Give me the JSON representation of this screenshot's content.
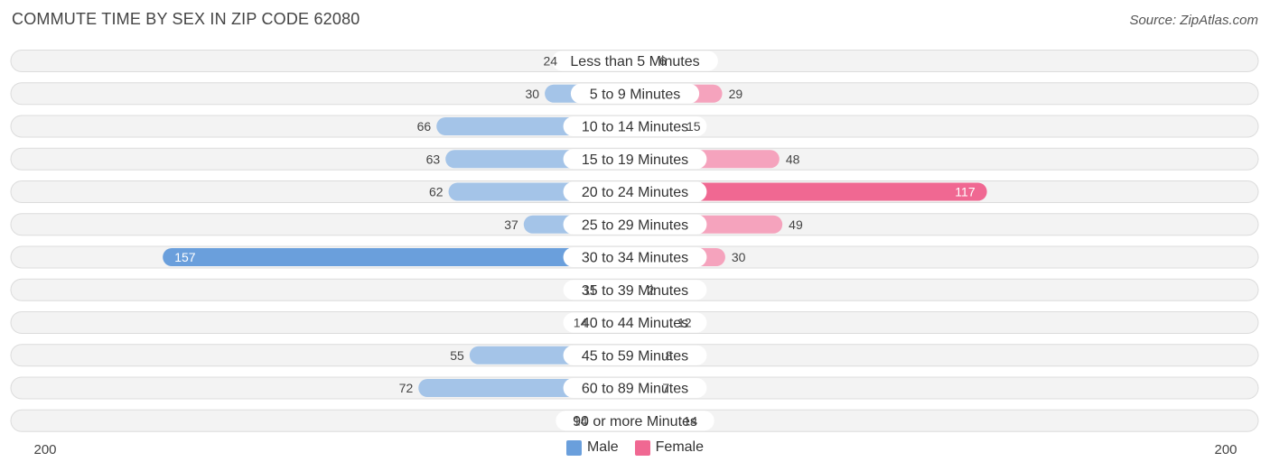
{
  "title": "COMMUTE TIME BY SEX IN ZIP CODE 62080",
  "source": "Source: ZipAtlas.com",
  "colors": {
    "male_light": "#a4c4e8",
    "male_strong": "#6a9fdc",
    "female_light": "#f5a3bd",
    "female_strong": "#f06892"
  },
  "legend": {
    "male": "Male",
    "female": "Female"
  },
  "axis": {
    "left_label": "200",
    "right_label": "200"
  },
  "chart_data": {
    "type": "bar",
    "orientation": "horizontal-diverging",
    "categories": [
      "Less than 5 Minutes",
      "5 to 9 Minutes",
      "10 to 14 Minutes",
      "15 to 19 Minutes",
      "20 to 24 Minutes",
      "25 to 29 Minutes",
      "30 to 34 Minutes",
      "35 to 39 Minutes",
      "40 to 44 Minutes",
      "45 to 59 Minutes",
      "60 to 89 Minutes",
      "90 or more Minutes"
    ],
    "series": [
      {
        "name": "Male",
        "values": [
          24,
          30,
          66,
          63,
          62,
          37,
          157,
          11,
          14,
          55,
          72,
          14
        ]
      },
      {
        "name": "Female",
        "values": [
          6,
          29,
          15,
          48,
          117,
          49,
          30,
          2,
          12,
          8,
          7,
          14
        ]
      }
    ],
    "xlim": [
      -200,
      200
    ],
    "legend_position": "bottom-center"
  }
}
